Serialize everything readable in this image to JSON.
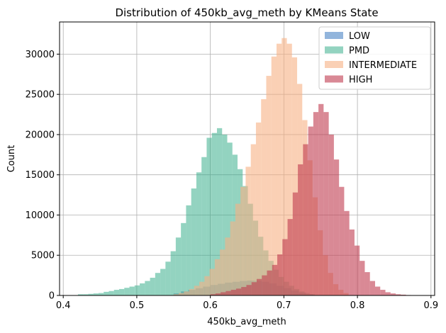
{
  "chart_data": {
    "type": "bar",
    "subtype": "histogram",
    "title": "Distribution of 450kb_avg_meth by KMeans State",
    "xlabel": "450kb_avg_meth",
    "ylabel": "Count",
    "xlim": [
      0.395,
      0.905
    ],
    "ylim": [
      0,
      34000
    ],
    "xticks": [
      0.4,
      0.5,
      0.6,
      0.7,
      0.8,
      0.9
    ],
    "xtick_labels": [
      "0.4",
      "0.5",
      "0.6",
      "0.7",
      "0.8",
      "0.9"
    ],
    "yticks": [
      0,
      5000,
      10000,
      15000,
      20000,
      25000,
      30000
    ],
    "ytick_labels": [
      "0",
      "5000",
      "10000",
      "15000",
      "20000",
      "25000",
      "30000"
    ],
    "grid": true,
    "legend_position": "top-right",
    "series": [
      {
        "name": "LOW",
        "color": "#4a84c4",
        "alpha": 0.6,
        "bins": [
          [
            0.55,
            0.56,
            250
          ],
          [
            0.56,
            0.57,
            500
          ],
          [
            0.57,
            0.58,
            700
          ],
          [
            0.58,
            0.59,
            900
          ],
          [
            0.59,
            0.6,
            1100
          ],
          [
            0.6,
            0.61,
            1300
          ],
          [
            0.61,
            0.62,
            1450
          ],
          [
            0.62,
            0.63,
            1600
          ],
          [
            0.63,
            0.64,
            1700
          ],
          [
            0.64,
            0.65,
            1800
          ],
          [
            0.65,
            0.66,
            1850
          ],
          [
            0.66,
            0.67,
            1800
          ],
          [
            0.67,
            0.68,
            1700
          ],
          [
            0.68,
            0.69,
            1500
          ],
          [
            0.69,
            0.7,
            1200
          ],
          [
            0.7,
            0.71,
            900
          ],
          [
            0.71,
            0.72,
            600
          ],
          [
            0.72,
            0.73,
            350
          ],
          [
            0.73,
            0.74,
            150
          ]
        ]
      },
      {
        "name": "PMD",
        "color": "#3aaf8c",
        "alpha": 0.55,
        "bins": [
          [
            0.42,
            0.427,
            150
          ],
          [
            0.427,
            0.434,
            150
          ],
          [
            0.434,
            0.441,
            200
          ],
          [
            0.441,
            0.448,
            250
          ],
          [
            0.448,
            0.455,
            300
          ],
          [
            0.455,
            0.462,
            450
          ],
          [
            0.462,
            0.469,
            550
          ],
          [
            0.469,
            0.476,
            700
          ],
          [
            0.476,
            0.483,
            800
          ],
          [
            0.483,
            0.49,
            950
          ],
          [
            0.49,
            0.497,
            1100
          ],
          [
            0.497,
            0.504,
            1250
          ],
          [
            0.504,
            0.511,
            1500
          ],
          [
            0.511,
            0.518,
            1800
          ],
          [
            0.518,
            0.525,
            2200
          ],
          [
            0.525,
            0.532,
            2800
          ],
          [
            0.532,
            0.539,
            3300
          ],
          [
            0.539,
            0.546,
            4200
          ],
          [
            0.546,
            0.553,
            5500
          ],
          [
            0.553,
            0.56,
            7200
          ],
          [
            0.56,
            0.567,
            9000
          ],
          [
            0.567,
            0.574,
            11200
          ],
          [
            0.574,
            0.581,
            13300
          ],
          [
            0.581,
            0.588,
            15300
          ],
          [
            0.588,
            0.595,
            17200
          ],
          [
            0.595,
            0.602,
            19600
          ],
          [
            0.602,
            0.609,
            20200
          ],
          [
            0.609,
            0.616,
            20800
          ],
          [
            0.616,
            0.623,
            20000
          ],
          [
            0.623,
            0.63,
            19000
          ],
          [
            0.63,
            0.637,
            17500
          ],
          [
            0.637,
            0.644,
            15700
          ],
          [
            0.644,
            0.651,
            13600
          ],
          [
            0.651,
            0.658,
            11400
          ],
          [
            0.658,
            0.665,
            9300
          ],
          [
            0.665,
            0.672,
            7300
          ],
          [
            0.672,
            0.679,
            5600
          ],
          [
            0.679,
            0.686,
            4300
          ],
          [
            0.686,
            0.693,
            3200
          ],
          [
            0.693,
            0.7,
            2300
          ],
          [
            0.7,
            0.707,
            1700
          ],
          [
            0.707,
            0.714,
            1200
          ],
          [
            0.714,
            0.721,
            800
          ],
          [
            0.721,
            0.728,
            500
          ],
          [
            0.728,
            0.735,
            300
          ],
          [
            0.735,
            0.742,
            150
          ]
        ]
      },
      {
        "name": "INTERMEDIATE",
        "color": "#f6b183",
        "alpha": 0.6,
        "bins": [
          [
            0.55,
            0.557,
            150
          ],
          [
            0.557,
            0.564,
            300
          ],
          [
            0.564,
            0.571,
            500
          ],
          [
            0.571,
            0.578,
            800
          ],
          [
            0.578,
            0.585,
            1200
          ],
          [
            0.585,
            0.592,
            1700
          ],
          [
            0.592,
            0.599,
            2400
          ],
          [
            0.599,
            0.606,
            3300
          ],
          [
            0.606,
            0.613,
            4500
          ],
          [
            0.613,
            0.62,
            5700
          ],
          [
            0.62,
            0.627,
            7200
          ],
          [
            0.627,
            0.634,
            9200
          ],
          [
            0.634,
            0.641,
            11400
          ],
          [
            0.641,
            0.648,
            13500
          ],
          [
            0.648,
            0.655,
            16000
          ],
          [
            0.655,
            0.662,
            18800
          ],
          [
            0.662,
            0.669,
            21500
          ],
          [
            0.669,
            0.676,
            24400
          ],
          [
            0.676,
            0.683,
            27300
          ],
          [
            0.683,
            0.69,
            29700
          ],
          [
            0.69,
            0.697,
            31300
          ],
          [
            0.697,
            0.704,
            32000
          ],
          [
            0.704,
            0.711,
            31300
          ],
          [
            0.711,
            0.718,
            29600
          ],
          [
            0.718,
            0.725,
            26300
          ],
          [
            0.725,
            0.732,
            21800
          ],
          [
            0.732,
            0.739,
            16800
          ],
          [
            0.739,
            0.746,
            12200
          ],
          [
            0.746,
            0.753,
            8100
          ],
          [
            0.753,
            0.76,
            5000
          ],
          [
            0.76,
            0.767,
            2800
          ],
          [
            0.767,
            0.774,
            1400
          ],
          [
            0.774,
            0.781,
            700
          ],
          [
            0.781,
            0.788,
            300
          ]
        ]
      },
      {
        "name": "HIGH",
        "color": "#c03a4e",
        "alpha": 0.6,
        "bins": [
          [
            0.6,
            0.607,
            150
          ],
          [
            0.607,
            0.614,
            250
          ],
          [
            0.614,
            0.621,
            400
          ],
          [
            0.621,
            0.628,
            550
          ],
          [
            0.628,
            0.635,
            700
          ],
          [
            0.635,
            0.642,
            850
          ],
          [
            0.642,
            0.649,
            1050
          ],
          [
            0.649,
            0.656,
            1300
          ],
          [
            0.656,
            0.663,
            1650
          ],
          [
            0.663,
            0.67,
            2050
          ],
          [
            0.67,
            0.677,
            2500
          ],
          [
            0.677,
            0.684,
            3100
          ],
          [
            0.684,
            0.691,
            3800
          ],
          [
            0.691,
            0.698,
            5100
          ],
          [
            0.698,
            0.705,
            7000
          ],
          [
            0.705,
            0.712,
            9500
          ],
          [
            0.712,
            0.719,
            12800
          ],
          [
            0.719,
            0.726,
            16300
          ],
          [
            0.726,
            0.733,
            18800
          ],
          [
            0.733,
            0.74,
            21000
          ],
          [
            0.74,
            0.747,
            22800
          ],
          [
            0.747,
            0.754,
            23800
          ],
          [
            0.754,
            0.761,
            22800
          ],
          [
            0.761,
            0.768,
            20000
          ],
          [
            0.768,
            0.775,
            16900
          ],
          [
            0.775,
            0.782,
            13500
          ],
          [
            0.782,
            0.789,
            10500
          ],
          [
            0.789,
            0.796,
            8200
          ],
          [
            0.796,
            0.803,
            6200
          ],
          [
            0.803,
            0.81,
            4300
          ],
          [
            0.81,
            0.817,
            2900
          ],
          [
            0.817,
            0.824,
            1800
          ],
          [
            0.824,
            0.831,
            1100
          ],
          [
            0.831,
            0.838,
            700
          ],
          [
            0.838,
            0.845,
            400
          ],
          [
            0.845,
            0.852,
            250
          ],
          [
            0.852,
            0.859,
            150
          ],
          [
            0.859,
            0.866,
            100
          ],
          [
            0.866,
            0.873,
            50
          ]
        ]
      }
    ]
  }
}
